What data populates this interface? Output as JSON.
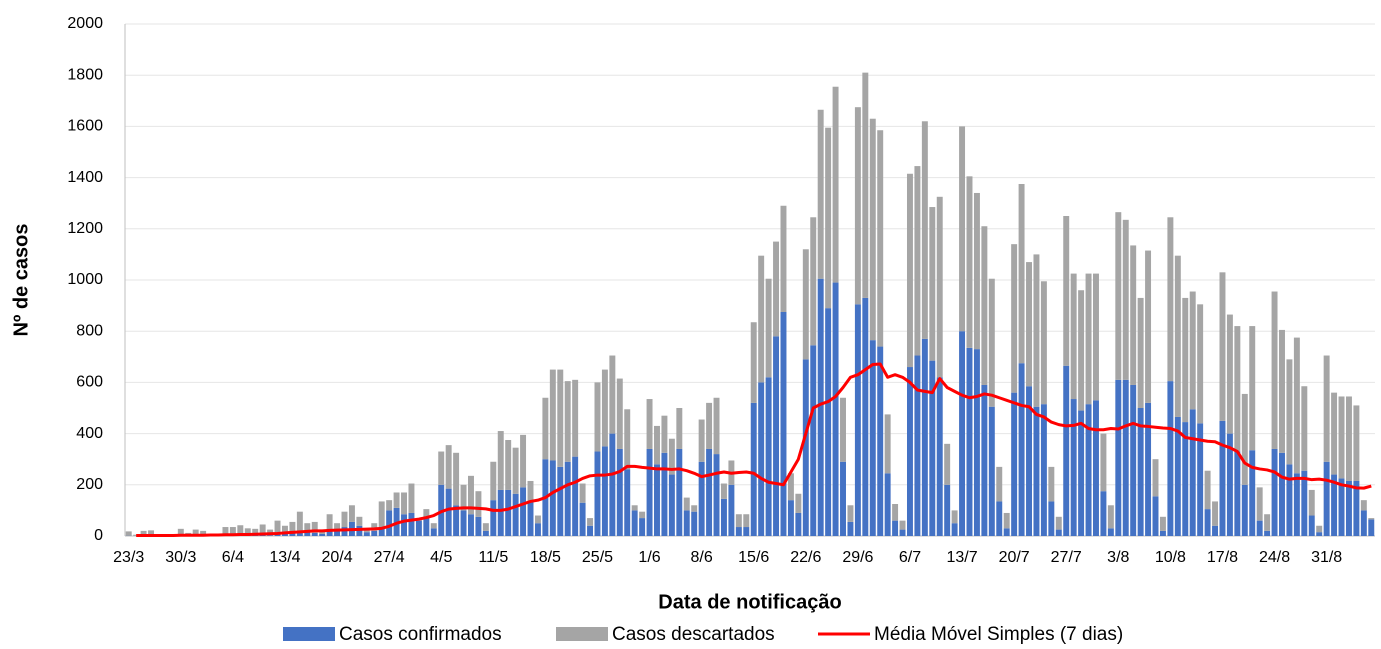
{
  "chart_data": {
    "type": "bar",
    "stacked": true,
    "x_label": "Data de notificação",
    "y_label": "Nº de casos",
    "categories": [
      "23/3",
      null,
      null,
      null,
      null,
      null,
      null,
      "30/3",
      null,
      null,
      null,
      null,
      null,
      null,
      "6/4",
      null,
      null,
      null,
      null,
      null,
      null,
      "13/4",
      null,
      null,
      null,
      null,
      null,
      null,
      "20/4",
      null,
      null,
      null,
      null,
      null,
      null,
      "27/4",
      null,
      null,
      null,
      null,
      null,
      null,
      "4/5",
      null,
      null,
      null,
      null,
      null,
      null,
      "11/5",
      null,
      null,
      null,
      null,
      null,
      null,
      "18/5",
      null,
      null,
      null,
      null,
      null,
      null,
      "25/5",
      null,
      null,
      null,
      null,
      null,
      null,
      "1/6",
      null,
      null,
      null,
      null,
      null,
      null,
      "8/6",
      null,
      null,
      null,
      null,
      null,
      null,
      "15/6",
      null,
      null,
      null,
      null,
      null,
      null,
      "22/6",
      null,
      null,
      null,
      null,
      null,
      null,
      "29/6",
      null,
      null,
      null,
      null,
      null,
      null,
      "6/7",
      null,
      null,
      null,
      null,
      null,
      null,
      "13/7",
      null,
      null,
      null,
      null,
      null,
      null,
      "20/7",
      null,
      null,
      null,
      null,
      null,
      null,
      "27/7",
      null,
      null,
      null,
      null,
      null,
      null,
      "3/8",
      null,
      null,
      null,
      null,
      null,
      null,
      "10/8",
      null,
      null,
      null,
      null,
      null,
      null,
      "17/8",
      null,
      null,
      null,
      null,
      null,
      null,
      "24/8",
      null,
      null,
      null,
      null,
      null,
      null,
      "31/8",
      null,
      null,
      null,
      null,
      null,
      null
    ],
    "series": [
      {
        "name": "Casos confirmados",
        "color": "#4472c4",
        "values": [
          1,
          0,
          2,
          2,
          0,
          0,
          0,
          2,
          1,
          3,
          2,
          1,
          1,
          3,
          4,
          5,
          4,
          4,
          6,
          3,
          8,
          10,
          12,
          18,
          14,
          12,
          8,
          20,
          25,
          35,
          55,
          40,
          15,
          20,
          35,
          100,
          110,
          85,
          90,
          60,
          75,
          30,
          200,
          185,
          120,
          100,
          85,
          75,
          20,
          140,
          180,
          180,
          165,
          190,
          135,
          50,
          300,
          295,
          270,
          290,
          310,
          130,
          40,
          330,
          350,
          400,
          340,
          260,
          100,
          70,
          340,
          280,
          325,
          240,
          340,
          100,
          95,
          290,
          340,
          320,
          145,
          200,
          35,
          35,
          520,
          600,
          620,
          780,
          875,
          140,
          90,
          690,
          745,
          1005,
          890,
          990,
          290,
          55,
          905,
          930,
          765,
          740,
          245,
          60,
          25,
          660,
          705,
          770,
          685,
          620,
          200,
          50,
          800,
          735,
          730,
          590,
          505,
          135,
          30,
          560,
          675,
          585,
          505,
          515,
          135,
          25,
          665,
          535,
          490,
          515,
          530,
          175,
          30,
          610,
          610,
          590,
          500,
          520,
          155,
          20,
          605,
          465,
          445,
          495,
          440,
          105,
          40,
          450,
          400,
          330,
          200,
          335,
          60,
          20,
          340,
          325,
          280,
          245,
          255,
          80,
          15,
          290,
          240,
          225,
          215,
          215,
          100,
          65
        ]
      },
      {
        "name": "Casos descartados",
        "color": "#a5a5a5",
        "values": [
          17,
          5,
          18,
          20,
          3,
          3,
          3,
          26,
          11,
          22,
          18,
          4,
          4,
          32,
          31,
          37,
          26,
          24,
          39,
          22,
          52,
          30,
          43,
          77,
          36,
          43,
          17,
          65,
          25,
          60,
          65,
          35,
          15,
          30,
          100,
          40,
          60,
          85,
          115,
          10,
          30,
          20,
          130,
          170,
          205,
          100,
          150,
          100,
          30,
          150,
          230,
          195,
          180,
          205,
          80,
          30,
          240,
          355,
          380,
          315,
          300,
          75,
          30,
          270,
          300,
          305,
          275,
          235,
          20,
          25,
          195,
          150,
          145,
          140,
          160,
          50,
          25,
          165,
          180,
          220,
          60,
          95,
          50,
          50,
          315,
          495,
          385,
          370,
          415,
          105,
          75,
          430,
          500,
          660,
          705,
          765,
          250,
          65,
          770,
          880,
          865,
          845,
          230,
          65,
          35,
          755,
          740,
          850,
          600,
          705,
          160,
          50,
          800,
          670,
          610,
          620,
          500,
          135,
          60,
          580,
          700,
          485,
          595,
          480,
          135,
          50,
          585,
          490,
          470,
          510,
          495,
          225,
          90,
          655,
          625,
          545,
          430,
          595,
          145,
          55,
          640,
          630,
          485,
          460,
          465,
          150,
          95,
          580,
          465,
          490,
          355,
          485,
          130,
          65,
          615,
          480,
          410,
          530,
          330,
          100,
          25,
          415,
          320,
          320,
          330,
          295,
          40,
          5
        ]
      },
      {
        "name": "Média Móvel Simples (7 dias)",
        "color": "#ff0000",
        "type": "line",
        "values": [
          null,
          2,
          2,
          2,
          2,
          2,
          2,
          3,
          3,
          3,
          3,
          4,
          4,
          5,
          5,
          6,
          6,
          7,
          8,
          9,
          10,
          12,
          14,
          16,
          18,
          20,
          20,
          22,
          23,
          24,
          25,
          26,
          27,
          28,
          30,
          38,
          50,
          58,
          62,
          66,
          72,
          80,
          95,
          105,
          108,
          110,
          110,
          108,
          106,
          100,
          100,
          105,
          115,
          125,
          135,
          140,
          150,
          170,
          185,
          200,
          210,
          225,
          235,
          238,
          238,
          242,
          252,
          272,
          272,
          268,
          265,
          262,
          262,
          260,
          262,
          255,
          245,
          232,
          238,
          245,
          250,
          245,
          248,
          250,
          245,
          225,
          210,
          205,
          200,
          250,
          300,
          400,
          500,
          515,
          525,
          545,
          580,
          620,
          630,
          650,
          670,
          672,
          620,
          630,
          620,
          600,
          570,
          565,
          560,
          615,
          580,
          565,
          550,
          540,
          545,
          555,
          550,
          540,
          530,
          520,
          510,
          505,
          475,
          465,
          445,
          435,
          430,
          432,
          440,
          420,
          415,
          415,
          420,
          418,
          430,
          440,
          430,
          428,
          425,
          422,
          420,
          410,
          385,
          380,
          375,
          370,
          368,
          355,
          345,
          330,
          285,
          268,
          262,
          258,
          250,
          230,
          222,
          225,
          225,
          220,
          222,
          218,
          210,
          200,
          195,
          188,
          187,
          195
        ]
      }
    ],
    "ylim": [
      0,
      2000
    ],
    "yticks": [
      0,
      200,
      400,
      600,
      800,
      1000,
      1200,
      1400,
      1600,
      1800,
      2000
    ],
    "grid": true
  }
}
